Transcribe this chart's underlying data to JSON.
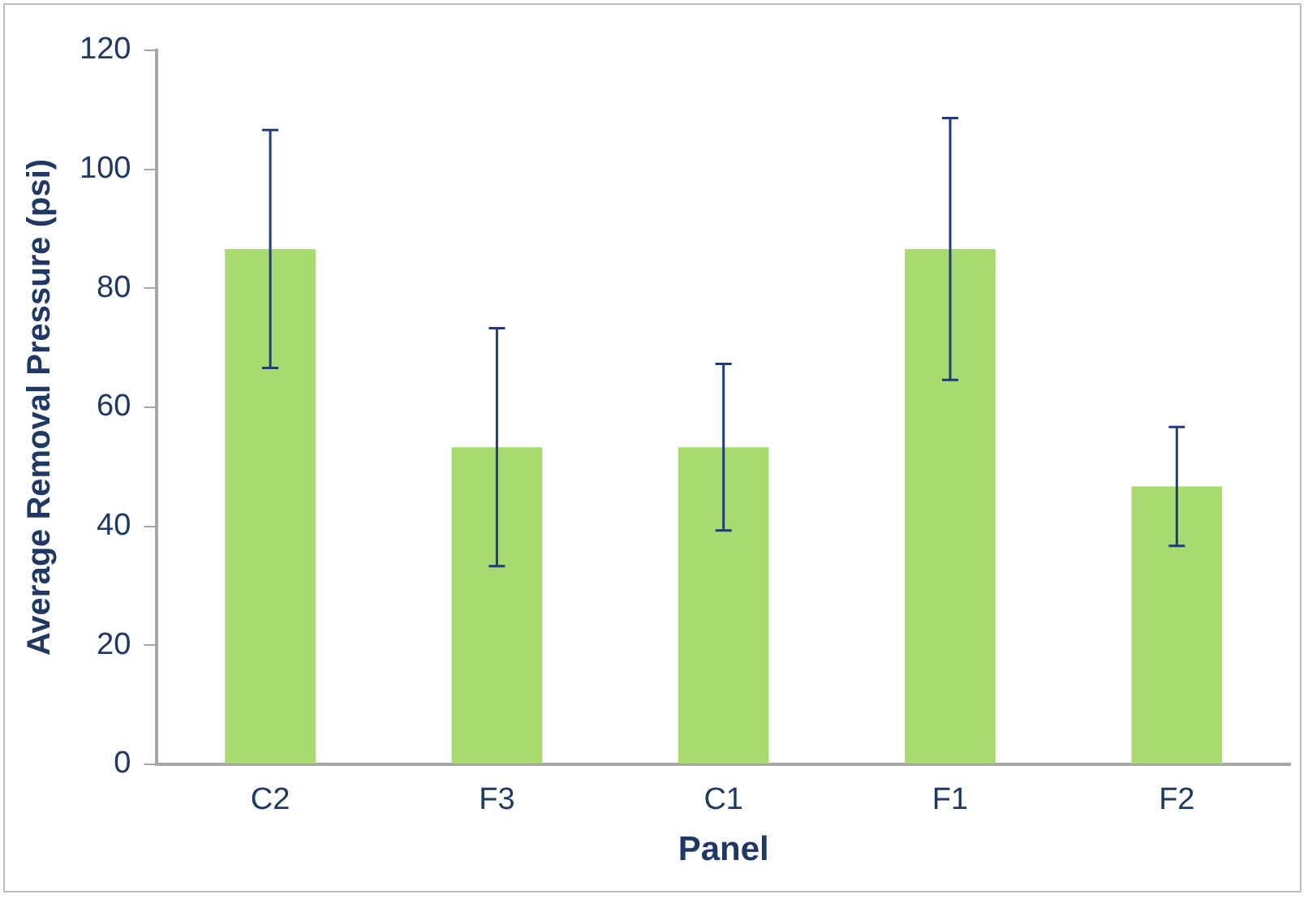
{
  "chart_data": {
    "type": "bar",
    "xlabel": "Panel",
    "ylabel": "Average Removal Pressure (psi)",
    "categories": [
      "C2",
      "F3",
      "C1",
      "F1",
      "F2"
    ],
    "values": [
      86.6,
      53.3,
      53.3,
      86.6,
      46.7
    ],
    "errors": [
      20,
      20,
      14,
      22,
      10
    ],
    "color": "#a9d971",
    "ylim": [
      0,
      120
    ],
    "yticks": [
      0,
      20,
      40,
      60,
      80,
      100,
      120
    ],
    "grid": false,
    "legend": false
  }
}
